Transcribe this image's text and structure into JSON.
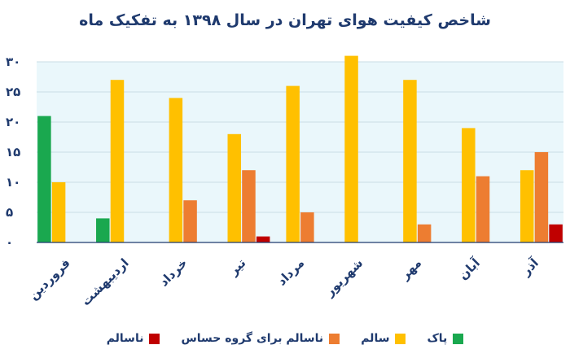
{
  "chart_data": {
    "type": "bar",
    "title": "شاخص کیفیت هوای تهران  در سال  ۱۳۹۸ به تفکیک ماه",
    "categories": [
      "فروردین",
      "اردیبهشت",
      "خرداد",
      "تیر",
      "مرداد",
      "شهریور",
      "مهر",
      "آبان",
      "آذر"
    ],
    "series": [
      {
        "name": "پاک",
        "color": "#1aa84f",
        "values": [
          21,
          4,
          0,
          0,
          0,
          0,
          0,
          0,
          0
        ]
      },
      {
        "name": "سالم",
        "color": "#ffc000",
        "values": [
          10,
          27,
          24,
          18,
          26,
          31,
          27,
          19,
          12
        ]
      },
      {
        "name": "ناسالم برای گروه حساس",
        "color": "#ed7d31",
        "values": [
          0,
          0,
          7,
          12,
          5,
          0,
          3,
          11,
          15
        ]
      },
      {
        "name": "ناسالم",
        "color": "#c00000",
        "values": [
          0,
          0,
          0,
          1,
          0,
          0,
          0,
          0,
          3
        ]
      }
    ],
    "ylim": [
      0,
      30
    ],
    "yticks": [
      0,
      5,
      10,
      15,
      20,
      25,
      30
    ],
    "ytick_labels": [
      "۰",
      "۵",
      "۱۰",
      "۱۵",
      "۲۰",
      "۲۵",
      "۳۰"
    ],
    "grid": true,
    "legend_position": "bottom",
    "plot_background": "#eaf7fb"
  }
}
